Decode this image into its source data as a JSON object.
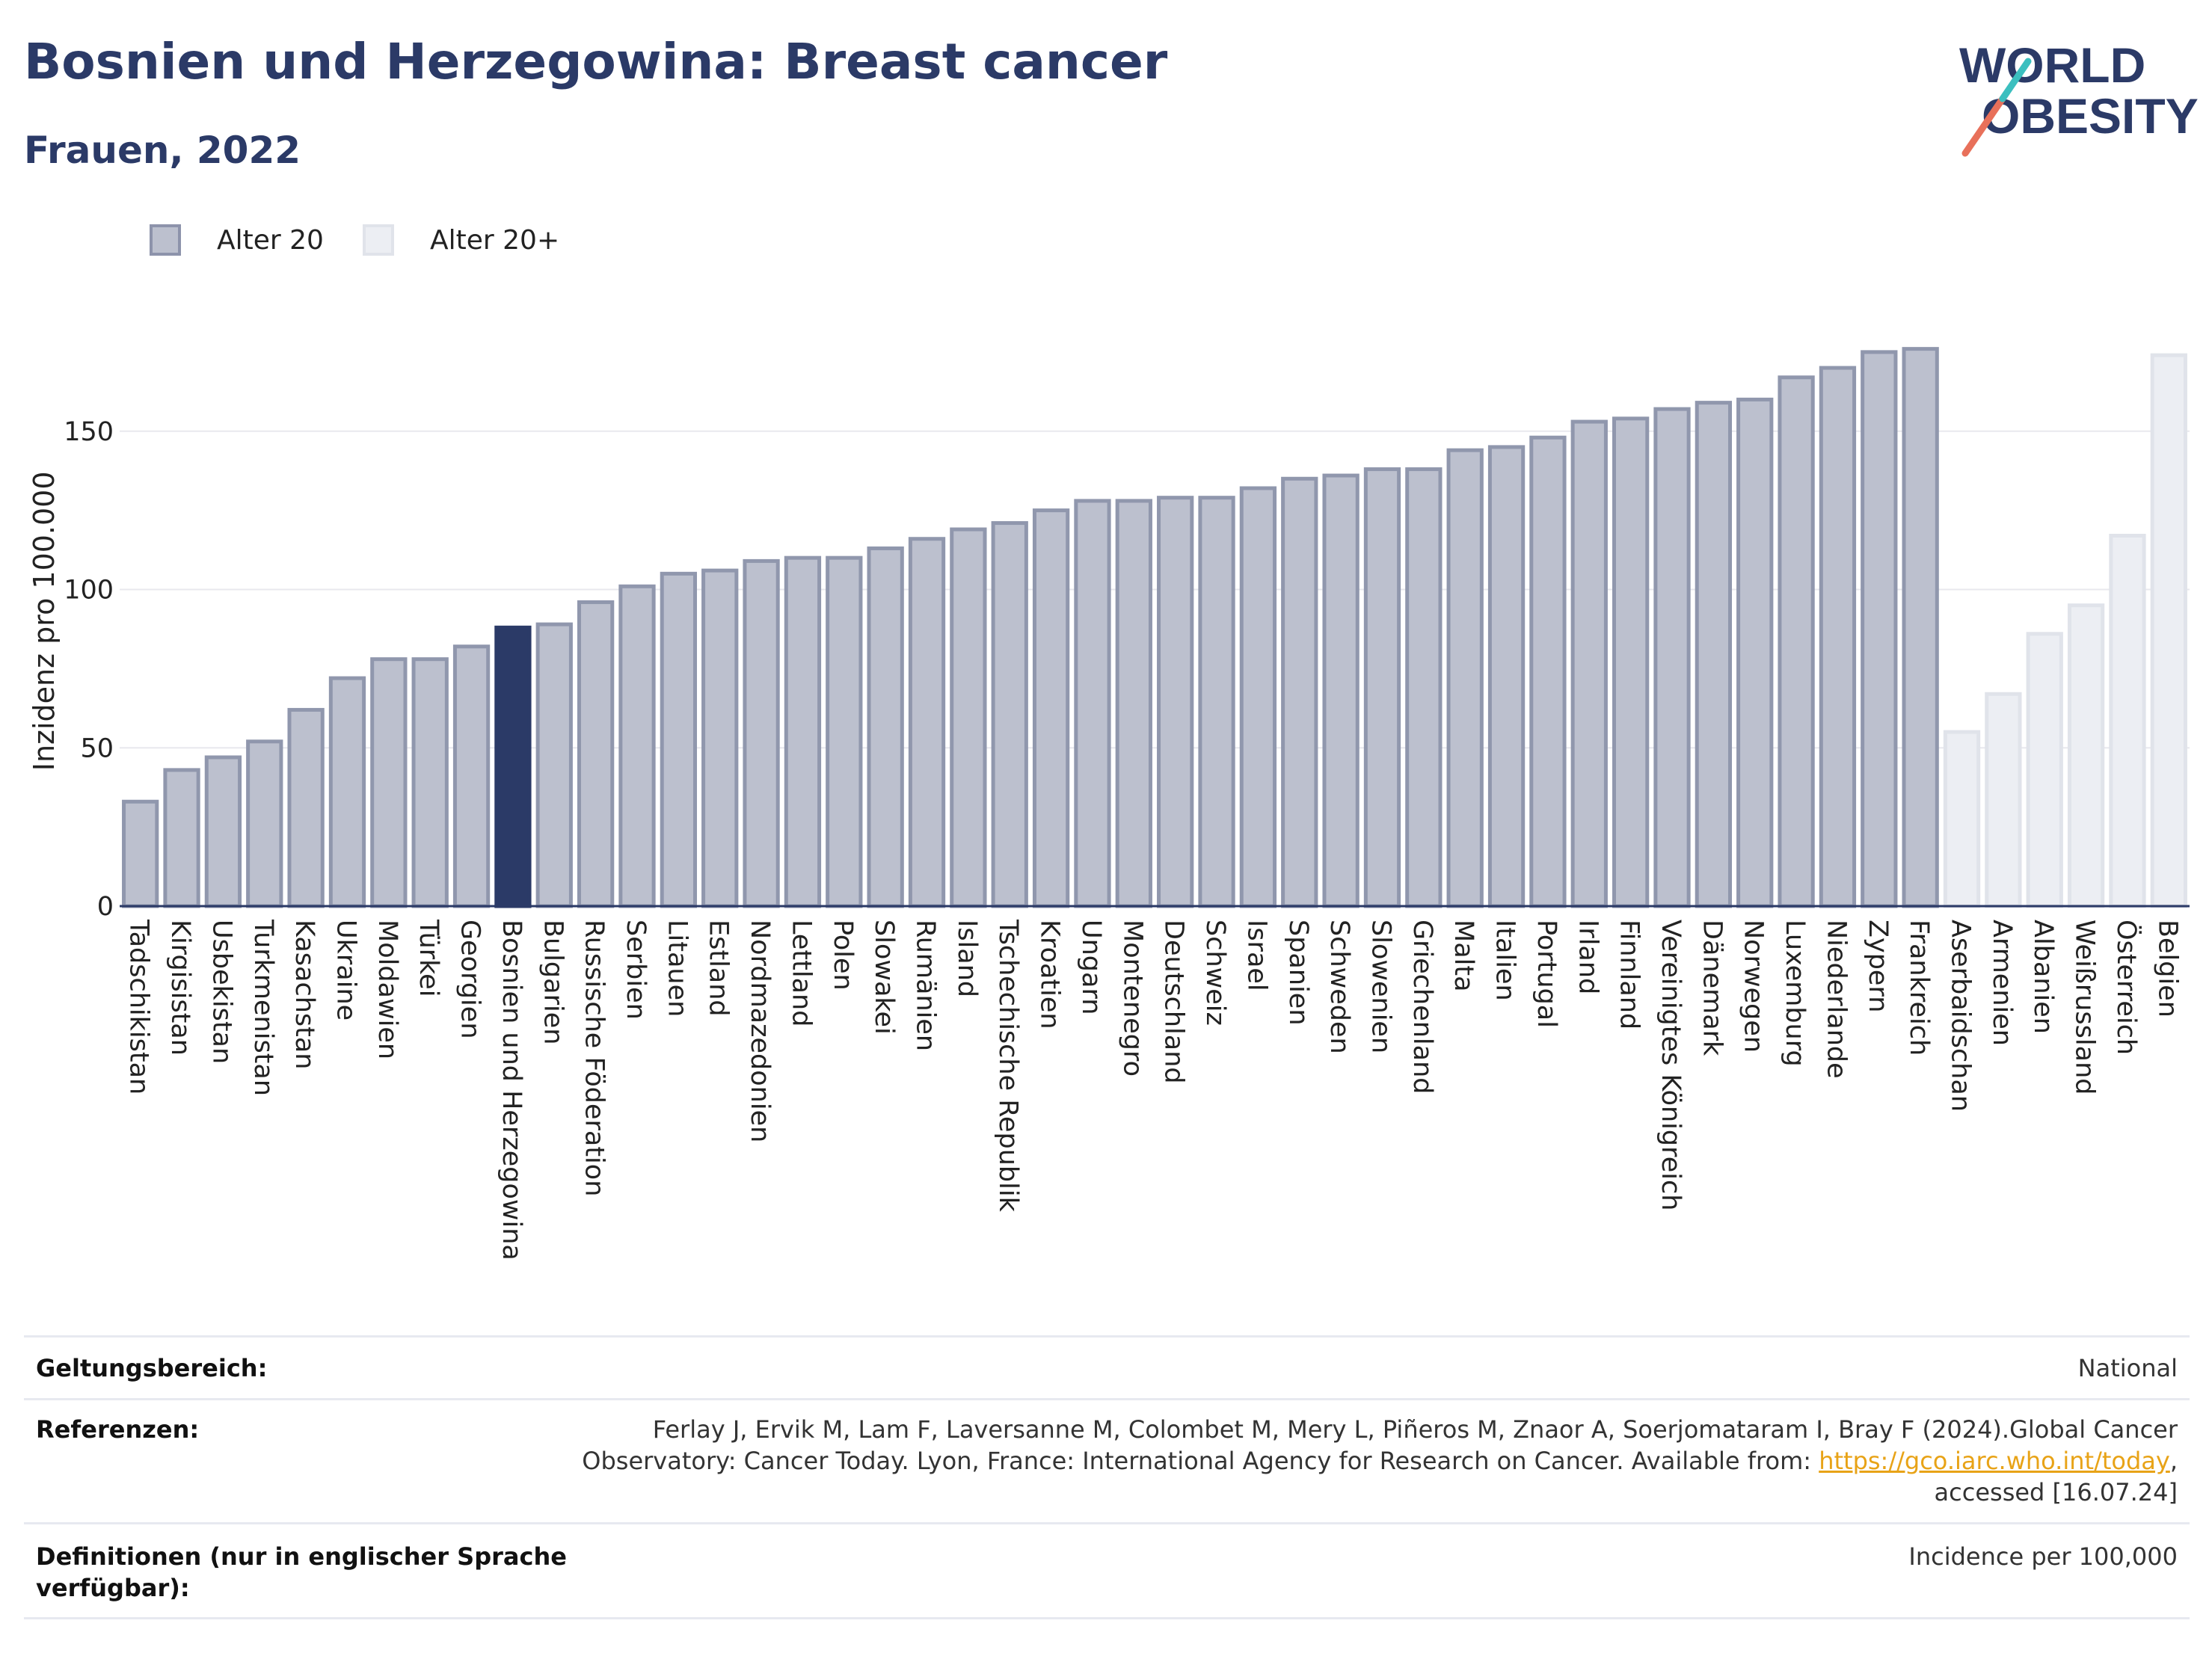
{
  "header": {
    "title": "Bosnien und Herzegowina: Breast cancer",
    "subtitle": "Frauen, 2022"
  },
  "logo": {
    "line1": "WORLD",
    "line2": "OBESITY"
  },
  "legend": [
    {
      "label": "Alter 20",
      "color": "#bcc0ce",
      "border": "#8d93ab"
    },
    {
      "label": "Alter 20+",
      "color": "#eceef3",
      "border": "#e0e3ea"
    }
  ],
  "chart_data": {
    "type": "bar",
    "ylabel": "Inzidenz pro 100.000",
    "ylim": [
      0,
      180
    ],
    "yticks": [
      0,
      50,
      100,
      150
    ],
    "highlight": "Bosnien und Herzegowina",
    "categories": [
      "Tadschikistan",
      "Kirgisistan",
      "Usbekistan",
      "Turkmenistan",
      "Kasachstan",
      "Ukraine",
      "Moldawien",
      "Türkei",
      "Georgien",
      "Bosnien und Herzegowina",
      "Bulgarien",
      "Russische Föderation",
      "Serbien",
      "Litauen",
      "Estland",
      "Nordmazedonien",
      "Lettland",
      "Polen",
      "Slowakei",
      "Rumänien",
      "Island",
      "Tschechische Republik",
      "Kroatien",
      "Ungarn",
      "Montenegro",
      "Deutschland",
      "Schweiz",
      "Israel",
      "Spanien",
      "Schweden",
      "Slowenien",
      "Griechenland",
      "Malta",
      "Italien",
      "Portugal",
      "Irland",
      "Finnland",
      "Vereinigtes Königreich",
      "Dänemark",
      "Norwegen",
      "Luxemburg",
      "Niederlande",
      "Zypern",
      "Frankreich",
      "Aserbaidschan",
      "Armenien",
      "Albanien",
      "Weißrussland",
      "Österreich",
      "Belgien"
    ],
    "values": [
      33,
      43,
      47,
      52,
      62,
      72,
      78,
      78,
      82,
      88,
      89,
      96,
      101,
      105,
      106,
      109,
      110,
      110,
      113,
      116,
      119,
      121,
      125,
      128,
      128,
      129,
      129,
      132,
      135,
      136,
      138,
      138,
      144,
      145,
      148,
      153,
      154,
      157,
      159,
      160,
      167,
      170,
      175,
      176,
      55,
      67,
      86,
      95,
      117,
      174
    ],
    "series": [
      {
        "name": "Alter 20",
        "categories_from": 0,
        "categories_to": 43
      },
      {
        "name": "Alter 20+",
        "categories_from": 44,
        "categories_to": 49
      }
    ],
    "colors": {
      "age20_fill": "#bcc0ce",
      "age20_stroke": "#9097ad",
      "age20plus_fill": "#eceef3",
      "age20plus_stroke": "#e0e3ea",
      "highlight_fill": "#2b3a67",
      "highlight_stroke": "#2b3a67",
      "axis": "#2b3a67",
      "grid": "#e8e8ee"
    },
    "grid": true,
    "legend_position": "top-left"
  },
  "meta": {
    "scope_label": "Geltungsbereich:",
    "scope_value": "National",
    "ref_label": "Referenzen:",
    "ref_line1": "Ferlay J, Ervik M, Lam F, Laversanne M, Colombet M, Mery L, Piñeros M, Znaor A, Soerjomataram I, Bray F (2024).Global Cancer",
    "ref_line2_prefix": "Observatory: Cancer Today. Lyon, France: International Agency for Research on Cancer. Available from: ",
    "ref_link": "https://gco.iarc.who.int/today",
    "ref_line2_suffix": ",",
    "ref_line3": "accessed [16.07.24]",
    "def_label_line1": "Definitionen (nur in englischer Sprache",
    "def_label_line2": "verfügbar):",
    "def_value": "Incidence per 100,000"
  }
}
